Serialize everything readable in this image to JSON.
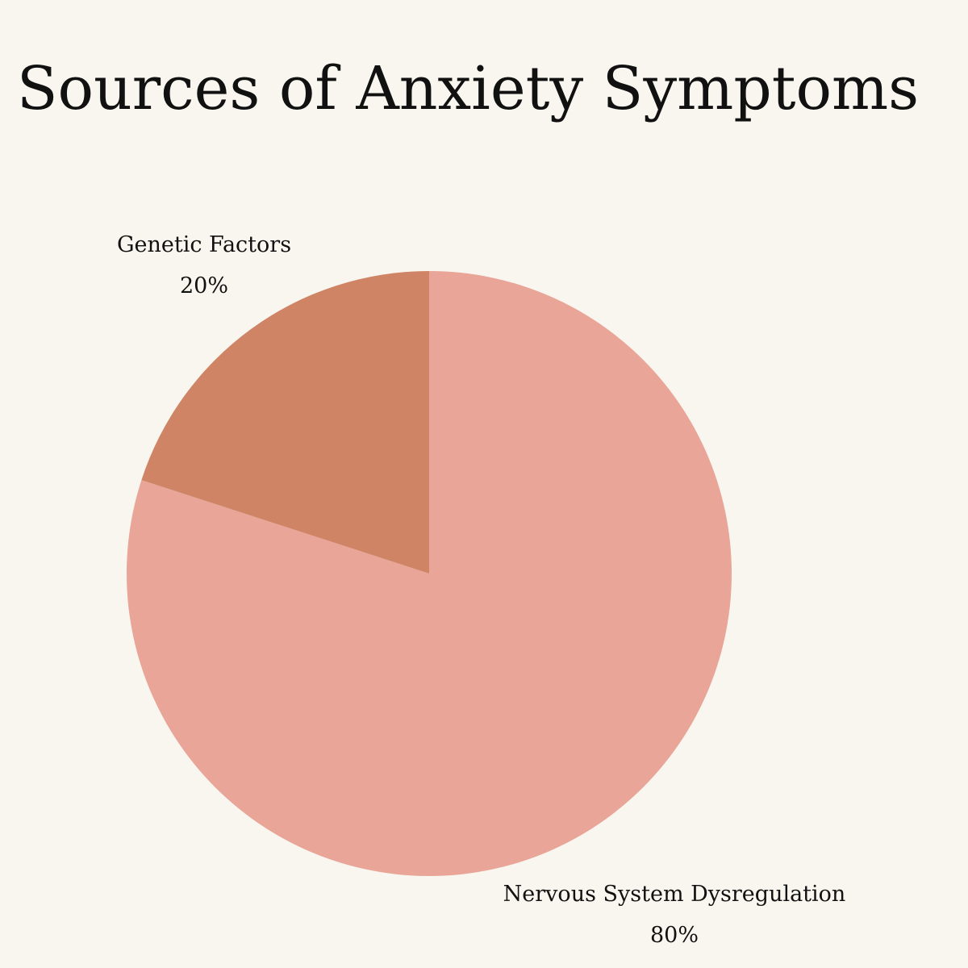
{
  "chart_data": {
    "type": "pie",
    "title": "Sources of Anxiety Symptoms",
    "slices": [
      {
        "label": "Nervous System Dysregulation",
        "value": 80,
        "value_label": "80%",
        "color": "#e8a598"
      },
      {
        "label": "Genetic Factors",
        "value": 20,
        "value_label": "20%",
        "color": "#cf8466"
      }
    ],
    "start": "12 o'clock",
    "direction": "clockwise",
    "legend": "none"
  }
}
